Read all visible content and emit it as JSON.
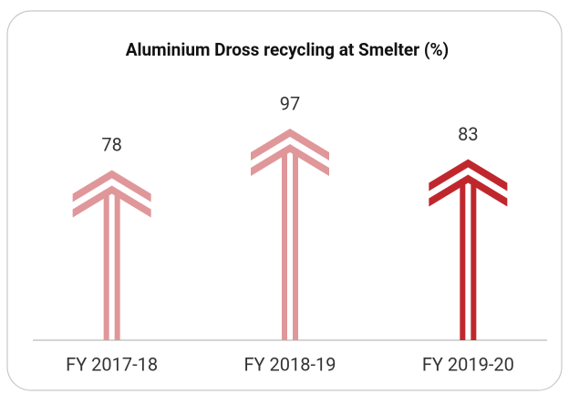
{
  "chart_data": {
    "type": "arrow-bar",
    "title": "Aluminium Dross recycling at Smelter (%)",
    "categories": [
      "FY 2017-18",
      "FY 2018-19",
      "FY 2019-20"
    ],
    "values": [
      78,
      97,
      83
    ],
    "colors": [
      "#e0979a",
      "#e0979a",
      "#c0272d"
    ]
  }
}
